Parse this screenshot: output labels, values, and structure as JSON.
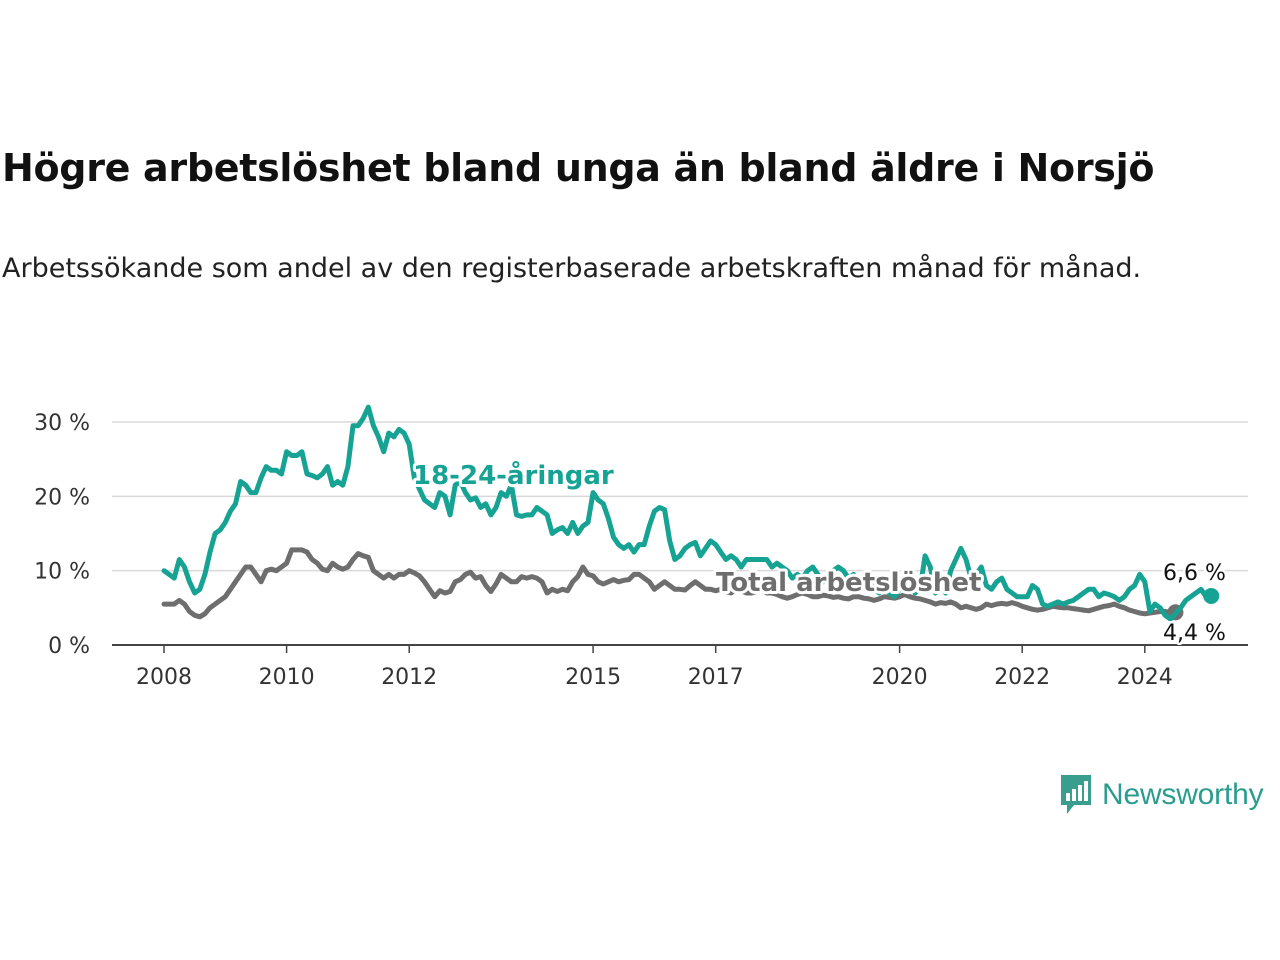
{
  "header": {
    "title": "Högre arbetslöshet bland unga än bland äldre i Norsjö",
    "subtitle": "Arbetssökande som andel av den registerbaserade arbetskraften månad för månad."
  },
  "brand": {
    "name": "Newsworthy",
    "icon": "newsworthy-logo-icon",
    "color": "#3a9e8f"
  },
  "chart_data": {
    "type": "line",
    "title": "Högre arbetslöshet bland unga än bland äldre i Norsjö",
    "xlabel": "",
    "ylabel": "",
    "ylim": [
      0,
      32
    ],
    "xlim": [
      "2007-11",
      "2025-06"
    ],
    "grid": true,
    "y_ticks": [
      0,
      10,
      20,
      30
    ],
    "y_tick_labels": [
      "0 %",
      "10 %",
      "20 %",
      "30 %"
    ],
    "x_ticks": [
      "2008-01",
      "2010-01",
      "2012-01",
      "2015-01",
      "2017-01",
      "2020-01",
      "2022-01",
      "2024-01"
    ],
    "x_tick_labels": [
      "2008",
      "2010",
      "2012",
      "2015",
      "2017",
      "2020",
      "2022",
      "2024"
    ],
    "x_start": "2008-01",
    "series": [
      {
        "name": "18-24-åringar",
        "color": "#16a394",
        "end_label": "6,6 %",
        "values": [
          10.0,
          9.5,
          9.0,
          11.5,
          10.5,
          8.5,
          7.0,
          7.5,
          9.5,
          12.5,
          15.0,
          15.5,
          16.5,
          18.0,
          19.0,
          22.0,
          21.5,
          20.5,
          20.5,
          22.5,
          24.0,
          23.5,
          23.5,
          23.0,
          26.0,
          25.5,
          25.5,
          26.0,
          23.0,
          22.8,
          22.5,
          23.0,
          24.0,
          21.5,
          22.0,
          21.5,
          24.0,
          29.5,
          29.5,
          30.5,
          32.0,
          29.5,
          28.0,
          26.0,
          28.5,
          28.0,
          29.0,
          28.5,
          27.0,
          22.5,
          21.0,
          19.5,
          19.0,
          18.5,
          20.5,
          20.0,
          17.5,
          21.5,
          22.0,
          20.5,
          19.5,
          19.8,
          18.5,
          19.0,
          17.5,
          18.5,
          20.5,
          20.0,
          21.5,
          17.5,
          17.3,
          17.5,
          17.5,
          18.5,
          18.0,
          17.5,
          15.0,
          15.5,
          15.8,
          15.0,
          16.5,
          15.0,
          16.0,
          16.5,
          20.5,
          19.5,
          19.0,
          17.0,
          14.5,
          13.5,
          13.0,
          13.5,
          12.5,
          13.5,
          13.5,
          16.0,
          18.0,
          18.5,
          18.2,
          14.0,
          11.5,
          12.0,
          13.0,
          13.5,
          13.8,
          12.0,
          13.0,
          14.0,
          13.5,
          12.5,
          11.5,
          12.0,
          11.5,
          10.5,
          11.5,
          11.5,
          11.5,
          11.5,
          11.5,
          10.5,
          11.0,
          10.5,
          10.0,
          9.0,
          9.5,
          9.0,
          10.0,
          10.5,
          9.5,
          8.5,
          9.0,
          10.0,
          10.5,
          10.0,
          9.0,
          9.5,
          8.5,
          8.0,
          8.5,
          7.5,
          7.0,
          7.5,
          7.0,
          6.5,
          7.5,
          8.5,
          8.0,
          7.0,
          7.5,
          12.0,
          10.5,
          7.0,
          8.0,
          7.0,
          10.0,
          11.5,
          13.0,
          11.5,
          9.0,
          9.5,
          10.5,
          8.0,
          7.5,
          8.5,
          9.0,
          7.5,
          7.0,
          6.5,
          6.5,
          6.5,
          8.0,
          7.5,
          5.5,
          5.2,
          5.5,
          5.8,
          5.5,
          5.8,
          6.0,
          6.5,
          7.0,
          7.5,
          7.5,
          6.5,
          7.0,
          6.8,
          6.5,
          6.0,
          6.5,
          7.5,
          8.0,
          9.5,
          8.5,
          4.5,
          5.5,
          5.0,
          4.0,
          3.5,
          4.2,
          5.0,
          6.0,
          6.5,
          7.0,
          7.5,
          6.5,
          6.6
        ]
      },
      {
        "name": "Total arbetslöshet",
        "color": "#6e6e6e",
        "end_label": "4,4 %",
        "values": [
          5.5,
          5.5,
          5.5,
          6.0,
          5.5,
          4.5,
          4.0,
          3.8,
          4.2,
          5.0,
          5.5,
          6.0,
          6.5,
          7.5,
          8.5,
          9.5,
          10.5,
          10.5,
          9.5,
          8.5,
          10.0,
          10.2,
          10.0,
          10.5,
          11.0,
          12.8,
          12.8,
          12.8,
          12.5,
          11.5,
          11.0,
          10.2,
          10.0,
          11.0,
          10.5,
          10.2,
          10.5,
          11.5,
          12.3,
          12.0,
          11.8,
          10.0,
          9.5,
          9.0,
          9.5,
          9.0,
          9.5,
          9.5,
          10.0,
          9.7,
          9.3,
          8.5,
          7.5,
          6.5,
          7.3,
          7.0,
          7.2,
          8.5,
          8.8,
          9.5,
          9.8,
          9.0,
          9.2,
          8.0,
          7.2,
          8.2,
          9.5,
          9.0,
          8.5,
          8.5,
          9.2,
          9.0,
          9.2,
          9.0,
          8.5,
          7.0,
          7.5,
          7.2,
          7.5,
          7.3,
          8.5,
          9.2,
          10.5,
          9.5,
          9.3,
          8.5,
          8.2,
          8.5,
          8.8,
          8.5,
          8.7,
          8.8,
          9.5,
          9.5,
          9.0,
          8.5,
          7.5,
          8.0,
          8.5,
          8.0,
          7.5,
          7.5,
          7.4,
          8.0,
          8.5,
          8.0,
          7.5,
          7.5,
          7.3,
          7.5,
          7.2,
          7.0,
          7.5,
          7.3,
          7.0,
          7.0,
          7.2,
          7.5,
          7.0,
          7.0,
          6.8,
          6.5,
          6.3,
          6.5,
          6.8,
          7.0,
          6.8,
          6.5,
          6.5,
          6.7,
          6.6,
          6.4,
          6.5,
          6.3,
          6.2,
          6.5,
          6.5,
          6.3,
          6.2,
          6.0,
          6.2,
          6.5,
          6.4,
          6.3,
          6.5,
          6.8,
          6.5,
          6.3,
          6.2,
          6.0,
          5.8,
          5.5,
          5.7,
          5.6,
          5.8,
          5.5,
          5.0,
          5.2,
          5.0,
          4.8,
          5.0,
          5.5,
          5.3,
          5.5,
          5.6,
          5.5,
          5.7,
          5.5,
          5.2,
          5.0,
          4.8,
          4.7,
          4.8,
          5.0,
          5.2,
          5.1,
          5.0,
          5.0,
          4.9,
          4.8,
          4.7,
          4.6,
          4.8,
          5.0,
          5.2,
          5.3,
          5.5,
          5.2,
          5.0,
          4.7,
          4.5,
          4.3,
          4.2,
          4.3,
          4.4,
          4.5,
          4.5,
          4.4,
          4.4
        ]
      }
    ]
  }
}
